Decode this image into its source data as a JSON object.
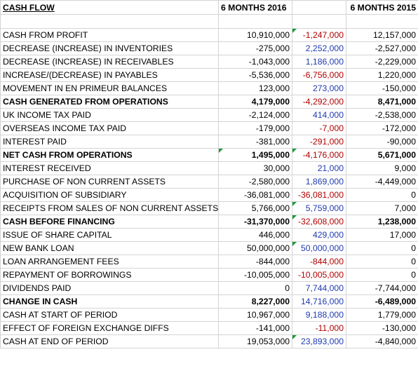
{
  "header": {
    "title": "CASH FLOW",
    "col_2016": "6 MONTHS 2016",
    "col_2015": "6 MONTHS 2015"
  },
  "rows": [
    {
      "label": "CASH FROM PROFIT",
      "a": "10,910,000",
      "b": "-1,247,000",
      "c": "12,157,000",
      "b_color": "red"
    },
    {
      "label": "DECREASE (INCREASE) IN INVENTORIES",
      "a": "-275,000",
      "b": "2,252,000",
      "c": "-2,527,000",
      "b_color": "blue"
    },
    {
      "label": "DECREASE (INCREASE) IN RECEIVABLES",
      "a": "-1,043,000",
      "b": "1,186,000",
      "c": "-2,229,000",
      "b_color": "blue"
    },
    {
      "label": "INCREASE/(DECREASE) IN PAYABLES",
      "a": "-5,536,000",
      "b": "-6,756,000",
      "c": "1,220,000",
      "b_color": "red"
    },
    {
      "label": "MOVEMENT IN EN PRIMEUR BALANCES",
      "a": "123,000",
      "b": "273,000",
      "c": "-150,000",
      "b_color": "blue"
    },
    {
      "label": "CASH GENERATED FROM OPERATIONS",
      "a": "4,179,000",
      "b": "-4,292,000",
      "c": "8,471,000",
      "b_color": "red",
      "bold": true
    },
    {
      "label": "UK INCOME TAX PAID",
      "a": "-2,124,000",
      "b": "414,000",
      "c": "-2,538,000",
      "b_color": "blue"
    },
    {
      "label": "OVERSEAS INCOME TAX PAID",
      "a": "-179,000",
      "b": "-7,000",
      "c": "-172,000",
      "b_color": "red"
    },
    {
      "label": "INTEREST PAID",
      "a": "-381,000",
      "b": "-291,000",
      "c": "-90,000",
      "b_color": "red"
    },
    {
      "label": "NET CASH FROM OPERATIONS",
      "a": "1,495,000",
      "b": "-4,176,000",
      "c": "5,671,000",
      "b_color": "red",
      "bold": true
    },
    {
      "label": "INTEREST RECEIVED",
      "a": "30,000",
      "b": "21,000",
      "c": "9,000",
      "b_color": "blue"
    },
    {
      "label": "PURCHASE OF NON CURRENT ASSETS",
      "a": "-2,580,000",
      "b": "1,869,000",
      "c": "-4,449,000",
      "b_color": "blue"
    },
    {
      "label": "ACQUISITION OF SUBSIDIARY",
      "a": "-36,081,000",
      "b": "-36,081,000",
      "c": "0",
      "b_color": "red"
    },
    {
      "label": "RECEIPTS FROM SALES OF NON CURRENT ASSETS",
      "a": "5,766,000",
      "b": "5,759,000",
      "c": "7,000",
      "b_color": "blue"
    },
    {
      "label": "CASH BEFORE FINANCING",
      "a": "-31,370,000",
      "b": "-32,608,000",
      "c": "1,238,000",
      "b_color": "red",
      "bold": true
    },
    {
      "label": "ISSUE OF SHARE CAPITAL",
      "a": "446,000",
      "b": "429,000",
      "c": "17,000",
      "b_color": "blue"
    },
    {
      "label": "NEW BANK LOAN",
      "a": "50,000,000",
      "b": "50,000,000",
      "c": "0",
      "b_color": "blue"
    },
    {
      "label": "LOAN ARRANGEMENT FEES",
      "a": "-844,000",
      "b": "-844,000",
      "c": "0",
      "b_color": "red"
    },
    {
      "label": "REPAYMENT OF BORROWINGS",
      "a": "-10,005,000",
      "b": "-10,005,000",
      "c": "0",
      "b_color": "red"
    },
    {
      "label": "DIVIDENDS PAID",
      "a": "0",
      "b": "7,744,000",
      "c": "-7,744,000",
      "b_color": "blue"
    },
    {
      "label": "CHANGE IN CASH",
      "a": "8,227,000",
      "b": "14,716,000",
      "c": "-6,489,000",
      "b_color": "blue",
      "bold": true
    },
    {
      "label": "CASH AT START OF PERIOD",
      "a": "10,967,000",
      "b": "9,188,000",
      "c": "1,779,000",
      "b_color": "blue"
    },
    {
      "label": "EFFECT OF FOREIGN EXCHANGE DIFFS",
      "a": "-141,000",
      "b": "-11,000",
      "c": "-130,000",
      "b_color": "red"
    },
    {
      "label": "CASH AT END OF PERIOD",
      "a": "19,053,000",
      "b": "23,893,000",
      "c": "-4,840,000",
      "b_color": "blue"
    }
  ],
  "colors": {
    "red": "#b00000",
    "blue": "#1f3ab0",
    "comment_marker": "#1a9a3a",
    "gridline": "#d4d4d4"
  }
}
